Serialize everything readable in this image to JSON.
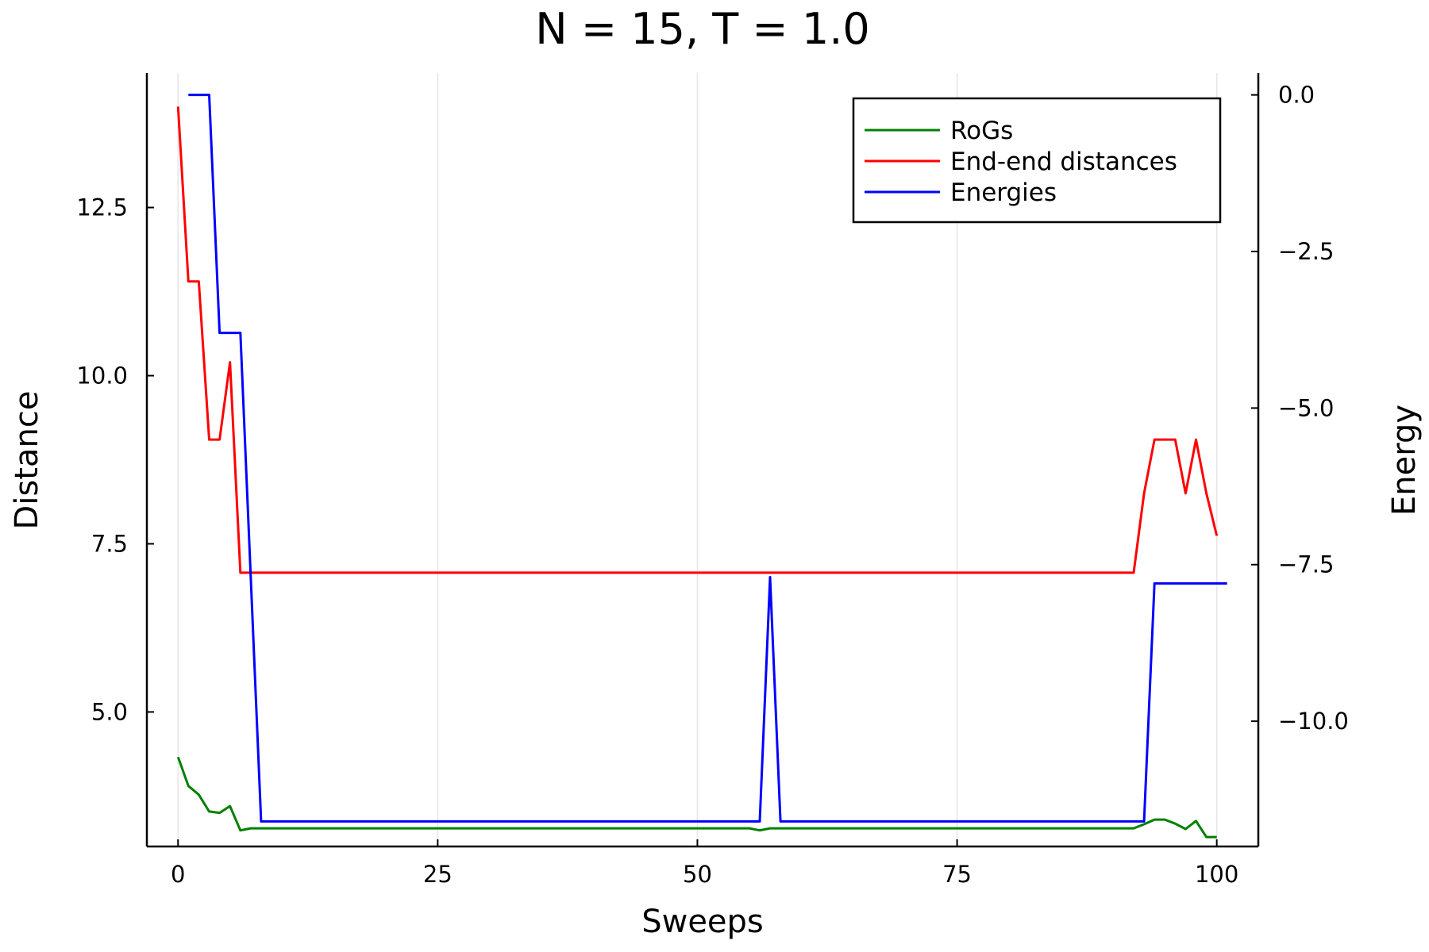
{
  "chart_data": {
    "type": "line",
    "title": "N = 15, T = 1.0",
    "xlabel": "Sweeps",
    "ylabel": "Distance",
    "y2label": "Energy",
    "xlim": [
      -3.0,
      104.0
    ],
    "ylim": [
      3.0,
      14.5
    ],
    "y2lim": [
      -12.0,
      0.35
    ],
    "xticks": [
      0,
      25,
      50,
      75,
      100
    ],
    "xtick_labels": [
      "0",
      "25",
      "50",
      "75",
      "100"
    ],
    "yticks": [
      5.0,
      7.5,
      10.0,
      12.5
    ],
    "ytick_labels": [
      "5.0",
      "7.5",
      "10.0",
      "12.5"
    ],
    "y2ticks": [
      0.0,
      -2.5,
      -5.0,
      -7.5,
      -10.0
    ],
    "y2tick_labels": [
      "0.0",
      "−2.5",
      "−5.0",
      "−7.5",
      "−10.0"
    ],
    "grid": true,
    "legend_position": "top-right",
    "series": [
      {
        "name": "RoGs",
        "axis": "left",
        "color": "#008000",
        "x": [
          0,
          1,
          2,
          3,
          4,
          5,
          6,
          7,
          8,
          55,
          56,
          57,
          58,
          92,
          93,
          94,
          95,
          96,
          97,
          98,
          99,
          100
        ],
        "y": [
          4.33,
          3.9,
          3.77,
          3.52,
          3.5,
          3.6,
          3.24,
          3.27,
          3.27,
          3.27,
          3.24,
          3.27,
          3.27,
          3.27,
          3.33,
          3.4,
          3.4,
          3.34,
          3.26,
          3.38,
          3.14,
          3.14
        ]
      },
      {
        "name": "End-end distances",
        "axis": "left",
        "color": "#ff0000",
        "x": [
          0,
          1,
          2,
          3,
          4,
          5,
          6,
          7,
          92,
          93,
          94,
          95,
          96,
          97,
          98,
          99,
          100
        ],
        "y": [
          14.0,
          11.4,
          11.4,
          9.05,
          9.05,
          10.2,
          7.07,
          7.07,
          7.07,
          8.25,
          9.05,
          9.05,
          9.05,
          8.25,
          9.05,
          8.25,
          7.62
        ]
      },
      {
        "name": "Energies",
        "axis": "right",
        "color": "#0000ff",
        "x": [
          1,
          3,
          4,
          6,
          8,
          56,
          57,
          58,
          93,
          94,
          101
        ],
        "y": [
          0.0,
          0.0,
          -3.8,
          -3.8,
          -11.6,
          -11.6,
          -7.7,
          -11.6,
          -11.6,
          -7.8,
          -7.8
        ]
      }
    ]
  }
}
